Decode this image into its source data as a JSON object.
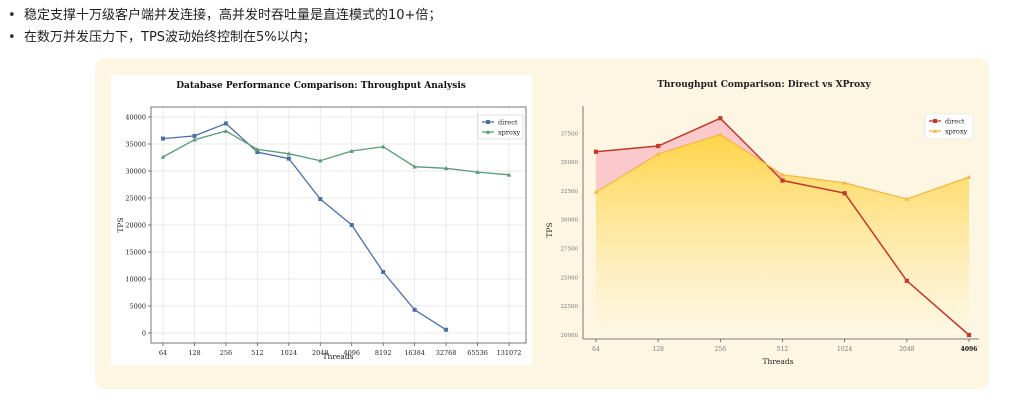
{
  "bullets": [
    "稳定支撑十万级客户端并发连接，高并发时吞吐量是直连模式的10+倍；",
    "在数万并发压力下，TPS波动始终控制在5%以内；"
  ],
  "colors": {
    "panel_bg": "#fdf6e3",
    "left_direct": "#4a6fa5",
    "left_xproxy": "#5a9a78",
    "right_direct": "#c0392b",
    "right_xproxy": "#f4b942",
    "right_area_fill": "#ffd23f",
    "right_gap_fill": "#f9b8c4"
  },
  "chart_data": [
    {
      "type": "line",
      "title": "Database Performance Comparison: Throughput Analysis",
      "xlabel": "Threads",
      "ylabel": "TPS",
      "categories": [
        "64",
        "128",
        "256",
        "512",
        "1024",
        "2048",
        "4096",
        "8192",
        "16384",
        "32768",
        "65536",
        "131072"
      ],
      "yticks": [
        "0",
        "5000",
        "10000",
        "15000",
        "20000",
        "25000",
        "30000",
        "35000",
        "40000"
      ],
      "ylim": [
        0,
        40000
      ],
      "grid": true,
      "legend": "top-right",
      "series": [
        {
          "name": "direct",
          "marker": "square",
          "values": [
            36000,
            36500,
            38800,
            33500,
            32300,
            24800,
            20000,
            11300,
            4300,
            600,
            null,
            null
          ]
        },
        {
          "name": "xproxy",
          "marker": "triangle",
          "values": [
            32600,
            35800,
            37400,
            34000,
            33200,
            31900,
            33700,
            34500,
            30800,
            30500,
            29800,
            29300
          ]
        }
      ]
    },
    {
      "type": "area",
      "title": "Throughput Comparison: Direct vs XProxy",
      "xlabel": "Threads",
      "ylabel": "TPS",
      "categories": [
        "64",
        "128",
        "256",
        "512",
        "1024",
        "2048",
        "4096"
      ],
      "yticks": [
        "20000",
        "22500",
        "25000",
        "27500",
        "30000",
        "32500",
        "35000",
        "37500"
      ],
      "ylim": [
        20000,
        39000
      ],
      "grid": false,
      "legend": "top-right",
      "series": [
        {
          "name": "direct",
          "marker": "square",
          "values": [
            35900,
            36400,
            38800,
            33400,
            32300,
            24700,
            20000
          ]
        },
        {
          "name": "xproxy",
          "marker": "triangle",
          "values": [
            32400,
            35700,
            37400,
            33900,
            33200,
            31800,
            33700
          ]
        }
      ]
    }
  ]
}
